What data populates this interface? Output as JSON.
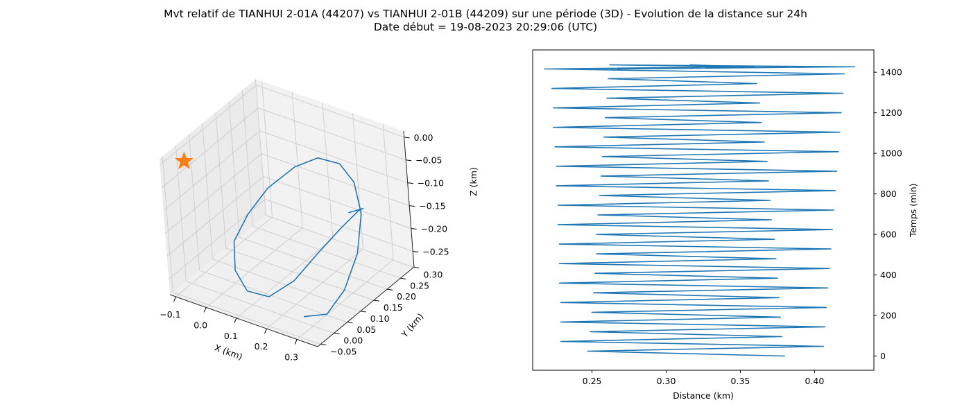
{
  "figure": {
    "title_line1": "Mvt relatif de TIANHUI 2-01A (44207) vs TIANHUI 2-01B (44209) sur une période (3D) - Evolution de la distance sur 24h",
    "title_line2": "Date début = 19-08-2023 20:29:06 (UTC)"
  },
  "colors": {
    "series": "#1f77b4",
    "marker": "#ff7f0e"
  },
  "chart_data": [
    {
      "type": "line",
      "projection": "3d",
      "xlabel": "X (km)",
      "ylabel": "Y (km)",
      "zlabel": "Z (km)",
      "x_ticks": [
        "−0.1",
        "0.0",
        "0.1",
        "0.2",
        "0.3"
      ],
      "y_ticks": [
        "−0.05",
        "0.00",
        "0.05",
        "0.10",
        "0.15",
        "0.20",
        "0.25",
        "0.30"
      ],
      "z_ticks": [
        "0.00",
        "−0.05",
        "−0.10",
        "−0.15",
        "−0.20",
        "−0.25"
      ],
      "xlim": [
        -0.14,
        0.34
      ],
      "ylim": [
        -0.07,
        0.32
      ],
      "zlim": [
        -0.28,
        0.0
      ],
      "marker": {
        "shape": "star",
        "x": -0.12,
        "y": 0.0,
        "z": -0.03
      },
      "series": [
        {
          "x": [
            0.24,
            0.3,
            0.33,
            0.33,
            0.3,
            0.24,
            0.17,
            0.09,
            0.02,
            -0.04,
            -0.07,
            -0.07,
            -0.03,
            0.04,
            0.12,
            0.19,
            0.24,
            0.28,
            0.3,
            0.29,
            0.24
          ],
          "y": [
            0.0,
            0.02,
            0.06,
            0.12,
            0.18,
            0.23,
            0.26,
            0.27,
            0.26,
            0.22,
            0.17,
            0.11,
            0.06,
            0.02,
            0.01,
            0.03,
            0.07,
            0.12,
            0.17,
            0.2,
            0.2
          ],
          "z": [
            -0.27,
            -0.26,
            -0.22,
            -0.17,
            -0.12,
            -0.09,
            -0.08,
            -0.09,
            -0.12,
            -0.16,
            -0.2,
            -0.23,
            -0.26,
            -0.27,
            -0.26,
            -0.22,
            -0.17,
            -0.13,
            -0.11,
            -0.12,
            -0.14
          ]
        }
      ]
    },
    {
      "type": "line",
      "xlabel": "Distance (km)",
      "ylabel": "Temps (min)",
      "xlim": [
        0.21,
        0.44
      ],
      "ylim": [
        -70,
        1510
      ],
      "x_ticks": [
        0.25,
        0.3,
        0.35,
        0.4
      ],
      "y_ticks": [
        0,
        200,
        400,
        600,
        800,
        1000,
        1200,
        1400
      ],
      "series": [
        {
          "x": [
            0.38,
            0.247,
            0.406,
            0.229,
            0.378,
            0.249,
            0.407,
            0.229,
            0.377,
            0.25,
            0.408,
            0.229,
            0.376,
            0.251,
            0.409,
            0.228,
            0.375,
            0.252,
            0.41,
            0.228,
            0.374,
            0.253,
            0.411,
            0.228,
            0.373,
            0.253,
            0.412,
            0.227,
            0.371,
            0.254,
            0.413,
            0.227,
            0.37,
            0.255,
            0.414,
            0.226,
            0.369,
            0.256,
            0.415,
            0.226,
            0.368,
            0.257,
            0.416,
            0.225,
            0.366,
            0.258,
            0.417,
            0.224,
            0.364,
            0.259,
            0.418,
            0.224,
            0.363,
            0.26,
            0.419,
            0.223,
            0.361,
            0.261,
            0.42,
            0.222,
            0.359,
            0.262,
            0.422,
            0.221,
            0.356,
            0.263,
            0.423,
            0.22,
            0.353,
            0.264,
            0.427,
            0.218,
            0.354,
            0.316
          ],
          "y": [
            0,
            24,
            48,
            72,
            96,
            120,
            144,
            168,
            192,
            216,
            240,
            264,
            288,
            312,
            336,
            360,
            384,
            408,
            432,
            456,
            480,
            504,
            528,
            552,
            576,
            600,
            624,
            648,
            672,
            696,
            720,
            744,
            768,
            792,
            816,
            840,
            864,
            888,
            912,
            936,
            960,
            984,
            1008,
            1032,
            1056,
            1080,
            1104,
            1128,
            1152,
            1176,
            1200,
            1224,
            1248,
            1272,
            1296,
            1320,
            1344,
            1368,
            1392,
            1416,
            1427,
            1436,
            1427,
            1416,
            1427,
            1416,
            1427,
            1416,
            1427,
            1416,
            1427,
            1416,
            1427,
            1436
          ]
        }
      ]
    }
  ]
}
